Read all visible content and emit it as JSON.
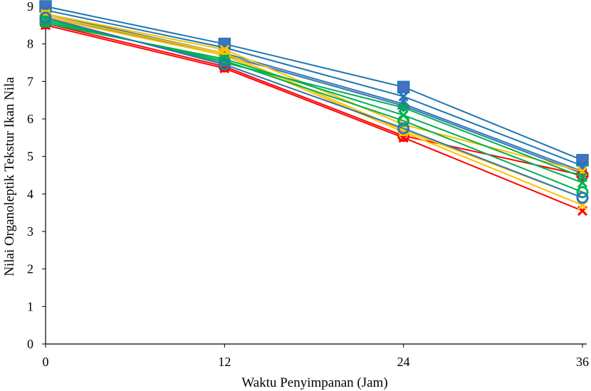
{
  "chart_data": {
    "type": "line",
    "title": "",
    "xlabel": "Waktu Penyimpanan (Jam)",
    "ylabel": "Nilai Organoleptik Tekstur Ikan Nila",
    "x": [
      0,
      12,
      24,
      36
    ],
    "x_tick_labels": [
      "0",
      "12",
      "24",
      "36"
    ],
    "y_tick_labels": [
      "0",
      "1",
      "2",
      "3",
      "4",
      "5",
      "6",
      "7",
      "8",
      "9"
    ],
    "xlim": [
      0,
      36
    ],
    "ylim": [
      0,
      9
    ],
    "grid": false,
    "legend": "none",
    "series": [
      {
        "color": "#1F77B4",
        "marker": "square",
        "values": [
          9.0,
          8.0,
          6.85,
          4.9
        ]
      },
      {
        "color": "#1F77B4",
        "marker": "x",
        "values": [
          8.9,
          7.9,
          6.6,
          4.75
        ]
      },
      {
        "color": "#2E75B6",
        "marker": "triangle",
        "values": [
          8.8,
          7.75,
          6.4,
          4.6
        ]
      },
      {
        "color": "#2E75B6",
        "marker": "diamond",
        "values": [
          8.75,
          7.7,
          6.35,
          4.55
        ]
      },
      {
        "color": "#FF0000",
        "marker": "x",
        "values": [
          8.5,
          7.35,
          5.5,
          3.55
        ]
      },
      {
        "color": "#FF0000",
        "marker": "circle",
        "values": [
          8.55,
          7.4,
          5.55,
          4.5
        ]
      },
      {
        "color": "#FFC000",
        "marker": "x",
        "values": [
          8.7,
          7.7,
          5.65,
          3.7
        ]
      },
      {
        "color": "#FFC000",
        "marker": "circle",
        "values": [
          8.75,
          7.75,
          5.7,
          3.9
        ]
      },
      {
        "color": "#FFC000",
        "marker": "x",
        "values": [
          8.8,
          7.85,
          5.85,
          4.6
        ]
      },
      {
        "color": "#00B050",
        "marker": "x",
        "values": [
          8.55,
          7.6,
          6.1,
          4.3
        ]
      },
      {
        "color": "#00B050",
        "marker": "circle",
        "values": [
          8.6,
          7.55,
          5.95,
          4.05
        ]
      },
      {
        "color": "#00B050",
        "marker": "x",
        "values": [
          8.65,
          7.5,
          6.3,
          4.45
        ]
      },
      {
        "color": "#2E75B6",
        "marker": "circle",
        "values": [
          8.7,
          7.45,
          5.75,
          3.9
        ]
      }
    ]
  }
}
